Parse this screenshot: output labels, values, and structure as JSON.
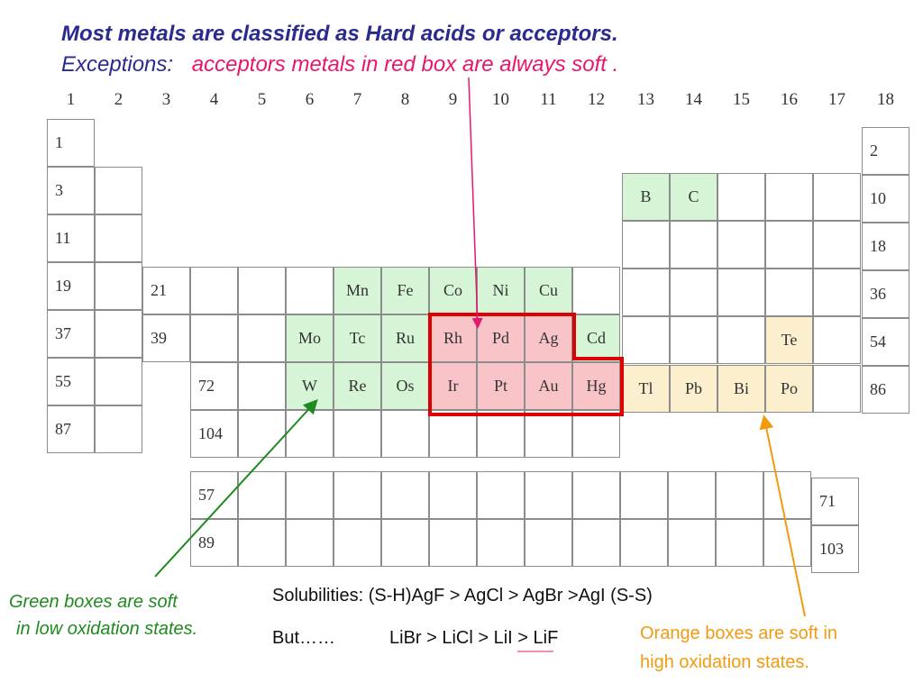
{
  "title": "Most metals are classified as Hard acids or acceptors.",
  "exceptions": {
    "label": "Exceptions:",
    "text": "acceptors metals in red box are always soft ."
  },
  "group_numbers": [
    "1",
    "2",
    "3",
    "4",
    "5",
    "6",
    "7",
    "8",
    "9",
    "10",
    "11",
    "12",
    "13",
    "14",
    "15",
    "16",
    "17",
    "18"
  ],
  "elements": {
    "h": "1",
    "he": "2",
    "li": "3",
    "ne": "10",
    "na": "11",
    "ar": "18",
    "k": "19",
    "sc": "21",
    "kr": "36",
    "rb": "37",
    "y": "39",
    "xe": "54",
    "cs": "55",
    "hf": "72",
    "rn": "86",
    "fr": "87",
    "rf": "104",
    "b": "B",
    "c": "C",
    "mn": "Mn",
    "fe": "Fe",
    "co": "Co",
    "ni": "Ni",
    "cu": "Cu",
    "mo": "Mo",
    "tc": "Tc",
    "ru": "Ru",
    "rh": "Rh",
    "pd": "Pd",
    "ag": "Ag",
    "cd": "Cd",
    "te": "Te",
    "w": "W",
    "re": "Re",
    "os": "Os",
    "ir": "Ir",
    "pt": "Pt",
    "au": "Au",
    "hg": "Hg",
    "tl": "Tl",
    "pb": "Pb",
    "bi": "Bi",
    "po": "Po",
    "la": "57",
    "lu": "71",
    "ac": "89",
    "lr": "103"
  },
  "colors": {
    "green": "#d6f5d6",
    "red": "#f9c4c8",
    "orange": "#fbefce",
    "red_border": "#dd0000",
    "green_arrow": "#1f8a1f",
    "orange_arrow": "#f29a10",
    "pink_arrow": "#e8166e"
  },
  "annotations": {
    "green_line1": "Green boxes are soft",
    "green_line2": "in low oxidation states.",
    "solubilities": "Solubilities: (S-H)AgF > AgCl > AgBr >AgI (S-S)",
    "but_label": "But……",
    "but_series": "LiBr > LiCl > LiI > LiF",
    "orange_line1": "Orange boxes are soft in",
    "orange_line2": "high oxidation states."
  }
}
